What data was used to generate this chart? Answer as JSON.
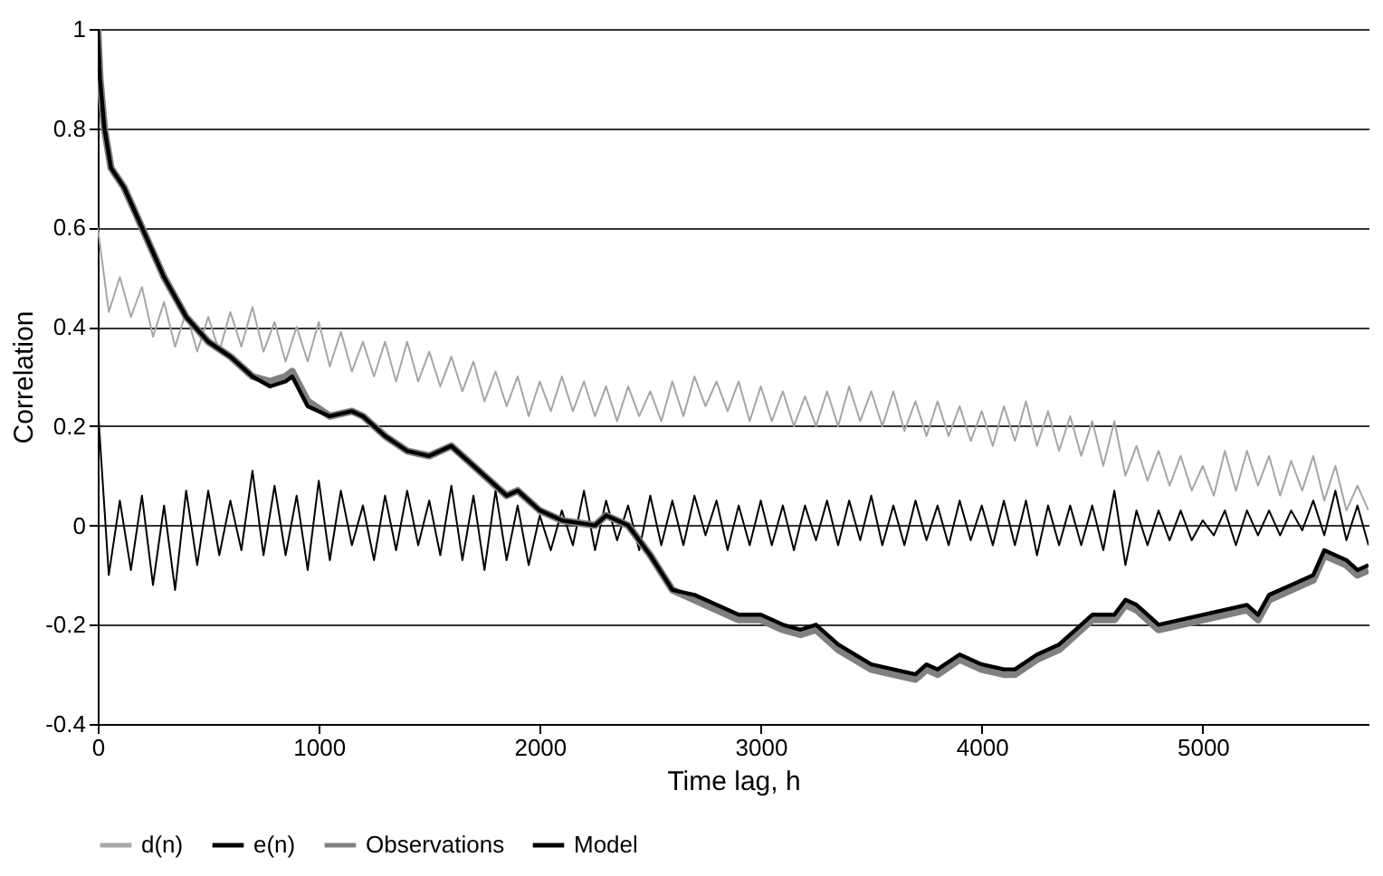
{
  "chart_data": {
    "type": "line",
    "xlabel": "Time lag, h",
    "ylabel": "Correlation",
    "xlim": [
      0,
      5750
    ],
    "xticks": [
      0,
      1000,
      2000,
      3000,
      4000,
      5000
    ],
    "ylim": [
      -0.4,
      1
    ],
    "yticks": [
      -0.4,
      -0.2,
      0,
      0.2,
      0.4,
      0.6,
      0.8,
      1
    ],
    "grid": "y",
    "legend": "bottom",
    "line_style": "solid",
    "marker": "none",
    "series": [
      {
        "name": "d(n)",
        "color": "#a6a6a6",
        "x": [
          0,
          50,
          100,
          150,
          200,
          250,
          300,
          350,
          400,
          450,
          500,
          550,
          600,
          650,
          700,
          750,
          800,
          850,
          900,
          950,
          1000,
          1050,
          1100,
          1150,
          1200,
          1250,
          1300,
          1350,
          1400,
          1450,
          1500,
          1550,
          1600,
          1650,
          1700,
          1750,
          1800,
          1850,
          1900,
          1950,
          2000,
          2050,
          2100,
          2150,
          2200,
          2250,
          2300,
          2350,
          2400,
          2450,
          2500,
          2550,
          2600,
          2650,
          2700,
          2750,
          2800,
          2850,
          2900,
          2950,
          3000,
          3050,
          3100,
          3150,
          3200,
          3250,
          3300,
          3350,
          3400,
          3450,
          3500,
          3550,
          3600,
          3650,
          3700,
          3750,
          3800,
          3850,
          3900,
          3950,
          4000,
          4050,
          4100,
          4150,
          4200,
          4250,
          4300,
          4350,
          4400,
          4450,
          4500,
          4550,
          4600,
          4650,
          4700,
          4750,
          4800,
          4850,
          4900,
          4950,
          5000,
          5050,
          5100,
          5150,
          5200,
          5250,
          5300,
          5350,
          5400,
          5450,
          5500,
          5550,
          5600,
          5650,
          5700,
          5750
        ],
        "values": [
          0.6,
          0.43,
          0.5,
          0.42,
          0.48,
          0.38,
          0.45,
          0.36,
          0.43,
          0.35,
          0.42,
          0.35,
          0.43,
          0.36,
          0.44,
          0.35,
          0.41,
          0.33,
          0.4,
          0.33,
          0.41,
          0.32,
          0.39,
          0.31,
          0.37,
          0.3,
          0.37,
          0.29,
          0.37,
          0.29,
          0.35,
          0.28,
          0.34,
          0.27,
          0.33,
          0.25,
          0.31,
          0.24,
          0.3,
          0.22,
          0.29,
          0.23,
          0.3,
          0.23,
          0.29,
          0.22,
          0.28,
          0.21,
          0.28,
          0.22,
          0.27,
          0.21,
          0.29,
          0.22,
          0.3,
          0.24,
          0.29,
          0.23,
          0.29,
          0.21,
          0.28,
          0.21,
          0.27,
          0.2,
          0.26,
          0.2,
          0.27,
          0.2,
          0.28,
          0.21,
          0.27,
          0.2,
          0.27,
          0.19,
          0.25,
          0.18,
          0.25,
          0.18,
          0.24,
          0.17,
          0.23,
          0.16,
          0.24,
          0.17,
          0.25,
          0.16,
          0.23,
          0.15,
          0.22,
          0.14,
          0.21,
          0.12,
          0.21,
          0.1,
          0.16,
          0.09,
          0.15,
          0.08,
          0.14,
          0.07,
          0.12,
          0.06,
          0.15,
          0.07,
          0.15,
          0.08,
          0.14,
          0.06,
          0.13,
          0.07,
          0.14,
          0.05,
          0.12,
          0.03,
          0.08,
          0.03
        ]
      },
      {
        "name": "e(n)",
        "color": "#000000",
        "x": [
          0,
          50,
          100,
          150,
          200,
          250,
          300,
          350,
          400,
          450,
          500,
          550,
          600,
          650,
          700,
          750,
          800,
          850,
          900,
          950,
          1000,
          1050,
          1100,
          1150,
          1200,
          1250,
          1300,
          1350,
          1400,
          1450,
          1500,
          1550,
          1600,
          1650,
          1700,
          1750,
          1800,
          1850,
          1900,
          1950,
          2000,
          2050,
          2100,
          2150,
          2200,
          2250,
          2300,
          2350,
          2400,
          2450,
          2500,
          2550,
          2600,
          2650,
          2700,
          2750,
          2800,
          2850,
          2900,
          2950,
          3000,
          3050,
          3100,
          3150,
          3200,
          3250,
          3300,
          3350,
          3400,
          3450,
          3500,
          3550,
          3600,
          3650,
          3700,
          3750,
          3800,
          3850,
          3900,
          3950,
          4000,
          4050,
          4100,
          4150,
          4200,
          4250,
          4300,
          4350,
          4400,
          4450,
          4500,
          4550,
          4600,
          4650,
          4700,
          4750,
          4800,
          4850,
          4900,
          4950,
          5000,
          5050,
          5100,
          5150,
          5200,
          5250,
          5300,
          5350,
          5400,
          5450,
          5500,
          5550,
          5600,
          5650,
          5700,
          5750
        ],
        "values": [
          0.24,
          -0.1,
          0.05,
          -0.09,
          0.06,
          -0.12,
          0.04,
          -0.13,
          0.07,
          -0.08,
          0.07,
          -0.06,
          0.05,
          -0.05,
          0.11,
          -0.06,
          0.08,
          -0.06,
          0.06,
          -0.09,
          0.09,
          -0.07,
          0.07,
          -0.04,
          0.04,
          -0.07,
          0.06,
          -0.05,
          0.07,
          -0.04,
          0.05,
          -0.06,
          0.08,
          -0.07,
          0.06,
          -0.09,
          0.07,
          -0.07,
          0.04,
          -0.08,
          0.02,
          -0.05,
          0.03,
          -0.04,
          0.07,
          -0.05,
          0.05,
          -0.03,
          0.04,
          -0.05,
          0.06,
          -0.04,
          0.05,
          -0.04,
          0.06,
          -0.02,
          0.05,
          -0.05,
          0.04,
          -0.04,
          0.05,
          -0.04,
          0.04,
          -0.05,
          0.04,
          -0.03,
          0.05,
          -0.04,
          0.05,
          -0.03,
          0.06,
          -0.04,
          0.04,
          -0.04,
          0.05,
          -0.03,
          0.04,
          -0.04,
          0.05,
          -0.03,
          0.04,
          -0.04,
          0.05,
          -0.04,
          0.05,
          -0.06,
          0.04,
          -0.04,
          0.04,
          -0.04,
          0.04,
          -0.05,
          0.07,
          -0.08,
          0.03,
          -0.04,
          0.03,
          -0.03,
          0.03,
          -0.03,
          0.01,
          -0.02,
          0.03,
          -0.04,
          0.03,
          -0.02,
          0.03,
          -0.02,
          0.03,
          -0.01,
          0.05,
          -0.02,
          0.07,
          -0.03,
          0.04,
          -0.04
        ]
      },
      {
        "name": "Observations",
        "color": "#808080",
        "x": [
          0,
          10,
          30,
          60,
          120,
          200,
          300,
          400,
          500,
          600,
          700,
          780,
          850,
          880,
          950,
          1050,
          1150,
          1200,
          1300,
          1400,
          1500,
          1600,
          1650,
          1750,
          1850,
          1900,
          2000,
          2100,
          2250,
          2300,
          2400,
          2500,
          2600,
          2700,
          2800,
          2900,
          3000,
          3100,
          3180,
          3250,
          3350,
          3500,
          3600,
          3700,
          3750,
          3800,
          3900,
          4000,
          4100,
          4150,
          4250,
          4350,
          4450,
          4500,
          4600,
          4650,
          4700,
          4800,
          4900,
          5000,
          5100,
          5200,
          5250,
          5300,
          5400,
          5500,
          5550,
          5650,
          5700,
          5750
        ],
        "values": [
          1.0,
          0.9,
          0.8,
          0.72,
          0.68,
          0.6,
          0.5,
          0.42,
          0.37,
          0.34,
          0.3,
          0.29,
          0.3,
          0.31,
          0.25,
          0.22,
          0.23,
          0.22,
          0.18,
          0.15,
          0.14,
          0.16,
          0.14,
          0.1,
          0.06,
          0.07,
          0.03,
          0.01,
          0.0,
          0.02,
          0.0,
          -0.06,
          -0.13,
          -0.15,
          -0.17,
          -0.19,
          -0.19,
          -0.21,
          -0.22,
          -0.21,
          -0.25,
          -0.29,
          -0.3,
          -0.31,
          -0.29,
          -0.3,
          -0.27,
          -0.29,
          -0.3,
          -0.3,
          -0.27,
          -0.25,
          -0.21,
          -0.19,
          -0.19,
          -0.16,
          -0.17,
          -0.21,
          -0.2,
          -0.19,
          -0.18,
          -0.17,
          -0.19,
          -0.15,
          -0.13,
          -0.11,
          -0.06,
          -0.08,
          -0.1,
          -0.09
        ]
      },
      {
        "name": "Model",
        "color": "#000000",
        "x": [
          0,
          10,
          30,
          60,
          120,
          200,
          300,
          400,
          500,
          600,
          700,
          780,
          850,
          880,
          950,
          1050,
          1150,
          1200,
          1300,
          1400,
          1500,
          1600,
          1650,
          1750,
          1850,
          1900,
          2000,
          2100,
          2250,
          2300,
          2400,
          2500,
          2600,
          2700,
          2800,
          2900,
          3000,
          3100,
          3180,
          3250,
          3350,
          3500,
          3600,
          3700,
          3750,
          3800,
          3900,
          4000,
          4100,
          4150,
          4250,
          4350,
          4450,
          4500,
          4600,
          4650,
          4700,
          4800,
          4900,
          5000,
          5100,
          5200,
          5250,
          5300,
          5400,
          5500,
          5550,
          5650,
          5700,
          5750
        ],
        "values": [
          1.0,
          0.9,
          0.8,
          0.72,
          0.68,
          0.6,
          0.5,
          0.42,
          0.37,
          0.34,
          0.3,
          0.28,
          0.29,
          0.3,
          0.24,
          0.22,
          0.23,
          0.22,
          0.18,
          0.15,
          0.14,
          0.16,
          0.14,
          0.1,
          0.06,
          0.07,
          0.03,
          0.01,
          0.0,
          0.02,
          0.0,
          -0.06,
          -0.13,
          -0.14,
          -0.16,
          -0.18,
          -0.18,
          -0.2,
          -0.21,
          -0.2,
          -0.24,
          -0.28,
          -0.29,
          -0.3,
          -0.28,
          -0.29,
          -0.26,
          -0.28,
          -0.29,
          -0.29,
          -0.26,
          -0.24,
          -0.2,
          -0.18,
          -0.18,
          -0.15,
          -0.16,
          -0.2,
          -0.19,
          -0.18,
          -0.17,
          -0.16,
          -0.18,
          -0.14,
          -0.12,
          -0.1,
          -0.05,
          -0.07,
          -0.09,
          -0.08
        ]
      }
    ]
  }
}
